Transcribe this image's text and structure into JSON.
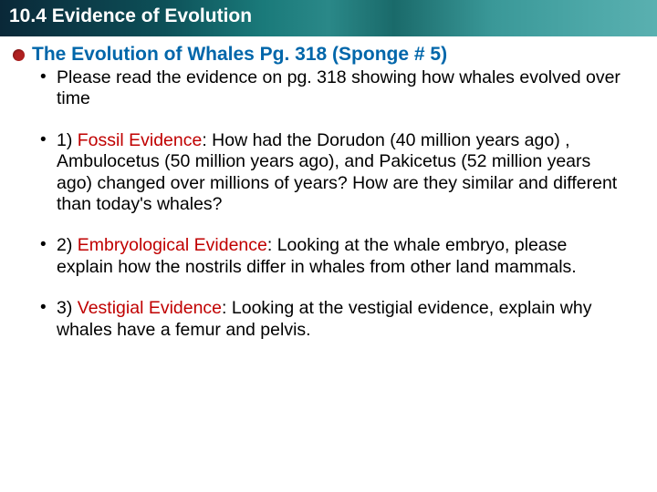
{
  "header": {
    "title": "10.4 Evidence of Evolution",
    "bg_gradient": [
      "#0a2838",
      "#0d5058",
      "#1a7a7a",
      "#3a9898",
      "#5ab0b0"
    ],
    "title_color": "#ffffff",
    "title_fontsize": 21,
    "title_weight": "bold"
  },
  "subtitle": {
    "text": "The Evolution of Whales Pg. 318   (Sponge # 5)",
    "color": "#0066aa",
    "fontsize": 21,
    "bullet_color": "#b02020"
  },
  "body": {
    "fontsize": 19.5,
    "text_color": "#000000",
    "highlight_color": "#c00000",
    "items": [
      {
        "pre": "Please read the evidence on pg. 318 showing how whales evolved over time",
        "hi": "",
        "post": ""
      },
      {
        "pre": "1) ",
        "hi": "Fossil Evidence",
        "post": ": How had the Dorudon (40 million years ago) , Ambulocetus (50 million years ago), and Pakicetus (52 million years ago) changed over millions of years? How are they similar and different than today's whales?"
      },
      {
        "pre": "2) ",
        "hi": "Embryological Evidence",
        "post": ": Looking at the whale embryo, please explain how the nostrils differ in whales from other land mammals."
      },
      {
        "pre": "3) ",
        "hi": "Vestigial Evidence",
        "post": ": Looking at the vestigial evidence, explain why whales have a femur and pelvis."
      }
    ]
  }
}
